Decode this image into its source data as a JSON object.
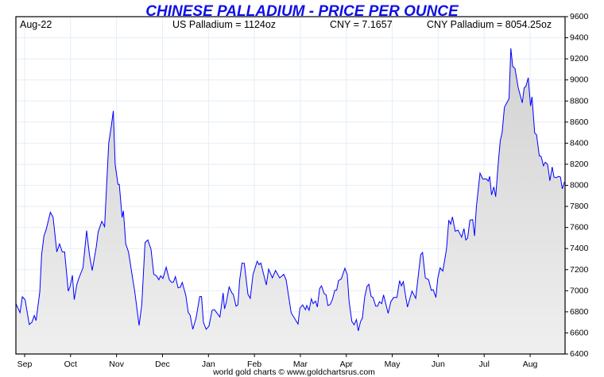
{
  "chart_data": {
    "type": "area",
    "title": "CHINESE PALLADIUM - PRICE PER OUNCE",
    "header": {
      "period": "Aug-22",
      "us_price": "US Palladium = 1124oz",
      "fx": "CNY = 7.1657",
      "cny_price": "CNY Palladium = 8054.25oz"
    },
    "footer": "world gold charts © www.goldchartsrus.com",
    "xlabel": "",
    "ylabel": "",
    "x_unit": "months since Sep 1 2022",
    "xlim": [
      -0.19,
      11.76
    ],
    "ylim": [
      6400,
      9600
    ],
    "y_ticks": [
      6400,
      6600,
      6800,
      7000,
      7200,
      7400,
      7600,
      7800,
      8000,
      8200,
      8400,
      8600,
      8800,
      9000,
      9200,
      9400,
      9600
    ],
    "x_ticks": [
      {
        "x": 0,
        "label": "Sep"
      },
      {
        "x": 1,
        "label": "Oct"
      },
      {
        "x": 2,
        "label": "Nov"
      },
      {
        "x": 3,
        "label": "Dec"
      },
      {
        "x": 4,
        "label": "Jan"
      },
      {
        "x": 5,
        "label": "Feb"
      },
      {
        "x": 6,
        "label": "Mar"
      },
      {
        "x": 7,
        "label": "Apr"
      },
      {
        "x": 8,
        "label": "May"
      },
      {
        "x": 9,
        "label": "Jun"
      },
      {
        "x": 10,
        "label": "Jul"
      },
      {
        "x": 11,
        "label": "Aug"
      }
    ],
    "grid": true,
    "colors": {
      "line": "#0000ff",
      "fill_top": "#d2d2d2",
      "fill_bottom": "#efefef",
      "grid": "#e4eef7",
      "title": "#1010e6"
    },
    "series": [
      {
        "name": "CNY Palladium",
        "points": [
          [
            -0.19,
            6878
          ],
          [
            -0.1,
            6792
          ],
          [
            -0.05,
            6943
          ],
          [
            0.01,
            6915
          ],
          [
            0.1,
            6679
          ],
          [
            0.16,
            6702
          ],
          [
            0.21,
            6765
          ],
          [
            0.25,
            6717
          ],
          [
            0.33,
            6991
          ],
          [
            0.37,
            7343
          ],
          [
            0.42,
            7519
          ],
          [
            0.47,
            7584
          ],
          [
            0.56,
            7745
          ],
          [
            0.62,
            7698
          ],
          [
            0.7,
            7368
          ],
          [
            0.76,
            7444
          ],
          [
            0.82,
            7368
          ],
          [
            0.87,
            7368
          ],
          [
            0.95,
            6996
          ],
          [
            0.99,
            7041
          ],
          [
            1.04,
            7147
          ],
          [
            1.08,
            6915
          ],
          [
            1.14,
            7066
          ],
          [
            1.19,
            7130
          ],
          [
            1.27,
            7217
          ],
          [
            1.35,
            7570
          ],
          [
            1.41,
            7343
          ],
          [
            1.47,
            7192
          ],
          [
            1.56,
            7419
          ],
          [
            1.6,
            7557
          ],
          [
            1.68,
            7658
          ],
          [
            1.74,
            7608
          ],
          [
            1.83,
            8400
          ],
          [
            1.89,
            8576
          ],
          [
            1.93,
            8707
          ],
          [
            1.97,
            8198
          ],
          [
            2.03,
            8010
          ],
          [
            2.06,
            8010
          ],
          [
            2.12,
            7696
          ],
          [
            2.15,
            7758
          ],
          [
            2.2,
            7444
          ],
          [
            2.26,
            7368
          ],
          [
            2.35,
            7117
          ],
          [
            2.4,
            6979
          ],
          [
            2.49,
            6670
          ],
          [
            2.55,
            6866
          ],
          [
            2.62,
            7457
          ],
          [
            2.68,
            7482
          ],
          [
            2.75,
            7394
          ],
          [
            2.81,
            7155
          ],
          [
            2.87,
            7142
          ],
          [
            2.92,
            7104
          ],
          [
            2.96,
            7142
          ],
          [
            3.01,
            7117
          ],
          [
            3.08,
            7223
          ],
          [
            3.15,
            7104
          ],
          [
            3.2,
            7079
          ],
          [
            3.24,
            7084
          ],
          [
            3.28,
            7134
          ],
          [
            3.34,
            7028
          ],
          [
            3.39,
            7034
          ],
          [
            3.43,
            7079
          ],
          [
            3.51,
            6953
          ],
          [
            3.56,
            6795
          ],
          [
            3.6,
            6770
          ],
          [
            3.66,
            6634
          ],
          [
            3.73,
            6740
          ],
          [
            3.81,
            6945
          ],
          [
            3.85,
            6945
          ],
          [
            3.89,
            6702
          ],
          [
            3.95,
            6634
          ],
          [
            4.01,
            6664
          ],
          [
            4.08,
            6815
          ],
          [
            4.13,
            6820
          ],
          [
            4.25,
            6752
          ],
          [
            4.32,
            6979
          ],
          [
            4.35,
            6828
          ],
          [
            4.39,
            6891
          ],
          [
            4.45,
            7036
          ],
          [
            4.51,
            6979
          ],
          [
            4.54,
            6966
          ],
          [
            4.6,
            6853
          ],
          [
            4.64,
            6866
          ],
          [
            4.68,
            7104
          ],
          [
            4.73,
            7263
          ],
          [
            4.78,
            7260
          ],
          [
            4.86,
            6966
          ],
          [
            4.91,
            6928
          ],
          [
            4.97,
            7155
          ],
          [
            5.06,
            7280
          ],
          [
            5.1,
            7248
          ],
          [
            5.14,
            7263
          ],
          [
            5.26,
            7054
          ],
          [
            5.31,
            7205
          ],
          [
            5.39,
            7122
          ],
          [
            5.46,
            7192
          ],
          [
            5.55,
            7122
          ],
          [
            5.64,
            7155
          ],
          [
            5.69,
            7104
          ],
          [
            5.8,
            6790
          ],
          [
            5.95,
            6684
          ],
          [
            5.99,
            6835
          ],
          [
            6.05,
            6866
          ],
          [
            6.11,
            6820
          ],
          [
            6.14,
            6860
          ],
          [
            6.19,
            6815
          ],
          [
            6.24,
            6923
          ],
          [
            6.28,
            6878
          ],
          [
            6.33,
            6903
          ],
          [
            6.37,
            6845
          ],
          [
            6.42,
            7021
          ],
          [
            6.46,
            7047
          ],
          [
            6.52,
            6971
          ],
          [
            6.56,
            6961
          ],
          [
            6.6,
            6860
          ],
          [
            6.65,
            6870
          ],
          [
            6.7,
            6921
          ],
          [
            6.75,
            7004
          ],
          [
            6.79,
            7004
          ],
          [
            6.83,
            7096
          ],
          [
            6.89,
            7112
          ],
          [
            6.97,
            7213
          ],
          [
            7.02,
            7155
          ],
          [
            7.06,
            6903
          ],
          [
            7.12,
            6709
          ],
          [
            7.17,
            6677
          ],
          [
            7.22,
            6727
          ],
          [
            7.26,
            6619
          ],
          [
            7.31,
            6709
          ],
          [
            7.35,
            6740
          ],
          [
            7.4,
            6941
          ],
          [
            7.45,
            7041
          ],
          [
            7.49,
            7062
          ],
          [
            7.54,
            6946
          ],
          [
            7.58,
            6936
          ],
          [
            7.64,
            6853
          ],
          [
            7.68,
            6853
          ],
          [
            7.72,
            6896
          ],
          [
            7.77,
            6878
          ],
          [
            7.81,
            6961
          ],
          [
            7.91,
            6785
          ],
          [
            7.97,
            6896
          ],
          [
            8.03,
            6936
          ],
          [
            8.1,
            6936
          ],
          [
            8.16,
            7096
          ],
          [
            8.2,
            7047
          ],
          [
            8.24,
            7087
          ],
          [
            8.29,
            6953
          ],
          [
            8.33,
            6845
          ],
          [
            8.43,
            6996
          ],
          [
            8.51,
            6928
          ],
          [
            8.58,
            7197
          ],
          [
            8.62,
            7343
          ],
          [
            8.66,
            7363
          ],
          [
            8.72,
            7122
          ],
          [
            8.79,
            7104
          ],
          [
            8.85,
            7004
          ],
          [
            8.89,
            7011
          ],
          [
            8.95,
            6936
          ],
          [
            8.99,
            7117
          ],
          [
            9.04,
            7217
          ],
          [
            9.1,
            7187
          ],
          [
            9.18,
            7394
          ],
          [
            9.23,
            7670
          ],
          [
            9.27,
            7632
          ],
          [
            9.31,
            7700
          ],
          [
            9.37,
            7565
          ],
          [
            9.43,
            7575
          ],
          [
            9.51,
            7508
          ],
          [
            9.56,
            7590
          ],
          [
            9.6,
            7482
          ],
          [
            9.64,
            7500
          ],
          [
            9.69,
            7670
          ],
          [
            9.75,
            7675
          ],
          [
            9.79,
            7519
          ],
          [
            9.83,
            7796
          ],
          [
            9.91,
            8115
          ],
          [
            9.97,
            8060
          ],
          [
            10.05,
            8060
          ],
          [
            10.09,
            8040
          ],
          [
            10.12,
            8085
          ],
          [
            10.16,
            7909
          ],
          [
            10.21,
            7985
          ],
          [
            10.25,
            7892
          ],
          [
            10.31,
            8236
          ],
          [
            10.35,
            8425
          ],
          [
            10.39,
            8500
          ],
          [
            10.44,
            8740
          ],
          [
            10.54,
            8823
          ],
          [
            10.58,
            9300
          ],
          [
            10.62,
            9129
          ],
          [
            10.67,
            9109
          ],
          [
            10.74,
            8928
          ],
          [
            10.83,
            8782
          ],
          [
            10.87,
            8923
          ],
          [
            10.91,
            8941
          ],
          [
            10.96,
            9021
          ],
          [
            11.01,
            8753
          ],
          [
            11.04,
            8840
          ],
          [
            11.1,
            8496
          ],
          [
            11.14,
            8481
          ],
          [
            11.2,
            8279
          ],
          [
            11.24,
            8274
          ],
          [
            11.29,
            8186
          ],
          [
            11.33,
            8219
          ],
          [
            11.38,
            8199
          ],
          [
            11.43,
            8043
          ],
          [
            11.48,
            8174
          ],
          [
            11.52,
            8078
          ],
          [
            11.57,
            8073
          ],
          [
            11.62,
            8085
          ],
          [
            11.66,
            8078
          ],
          [
            11.7,
            7967
          ],
          [
            11.75,
            8035
          ]
        ]
      }
    ]
  }
}
